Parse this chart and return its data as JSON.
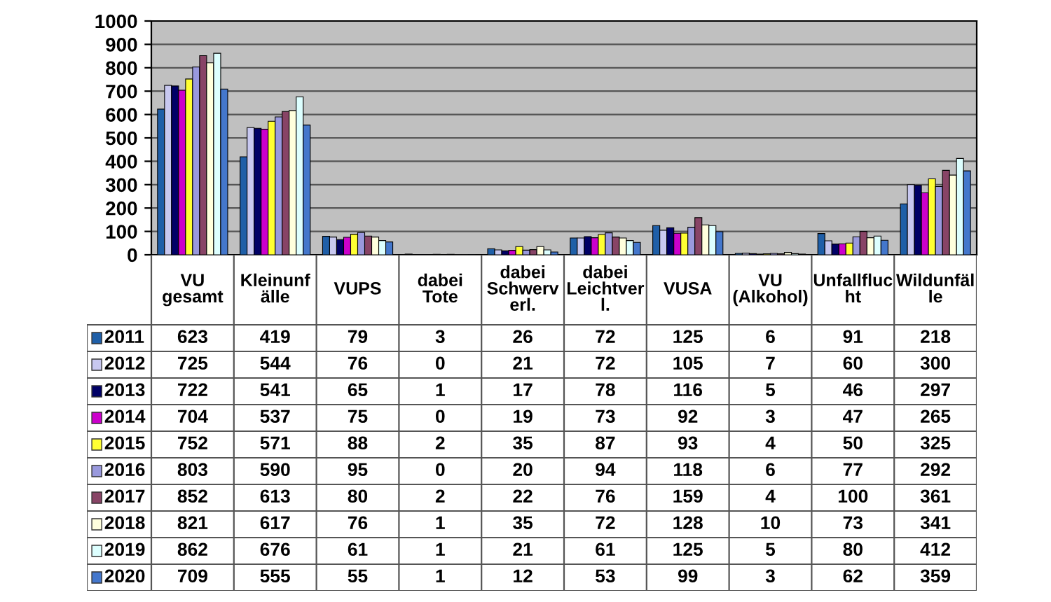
{
  "chart_data": {
    "type": "bar",
    "categories": [
      "VU\ngesamt",
      "Kleinunf\nälle",
      "VUPS",
      "dabei\nTote",
      "dabei\nSchwerv\nerl.",
      "dabei\nLeichtver\nl.",
      "VUSA",
      "VU\n(Alkohol)",
      "Unfallfluc\nht",
      "Wildunfäl\nle"
    ],
    "series": [
      {
        "name": "2011",
        "color": "#1f5fa8",
        "values": [
          623,
          419,
          79,
          3,
          26,
          72,
          125,
          6,
          91,
          218
        ]
      },
      {
        "name": "2012",
        "color": "#c8c8f0",
        "values": [
          725,
          544,
          76,
          0,
          21,
          72,
          105,
          7,
          60,
          300
        ]
      },
      {
        "name": "2013",
        "color": "#000066",
        "values": [
          722,
          541,
          65,
          1,
          17,
          78,
          116,
          5,
          46,
          297
        ]
      },
      {
        "name": "2014",
        "color": "#cc00cc",
        "values": [
          704,
          537,
          75,
          0,
          19,
          73,
          92,
          3,
          47,
          265
        ]
      },
      {
        "name": "2015",
        "color": "#ffff33",
        "values": [
          752,
          571,
          88,
          2,
          35,
          87,
          93,
          4,
          50,
          325
        ]
      },
      {
        "name": "2016",
        "color": "#9999dd",
        "values": [
          803,
          590,
          95,
          0,
          20,
          94,
          118,
          6,
          77,
          292
        ]
      },
      {
        "name": "2017",
        "color": "#884466",
        "values": [
          852,
          613,
          80,
          2,
          22,
          76,
          159,
          4,
          100,
          361
        ]
      },
      {
        "name": "2018",
        "color": "#ffffdd",
        "values": [
          821,
          617,
          76,
          1,
          35,
          72,
          128,
          10,
          73,
          341
        ]
      },
      {
        "name": "2019",
        "color": "#ddffff",
        "values": [
          862,
          676,
          61,
          1,
          21,
          61,
          125,
          5,
          80,
          412
        ]
      },
      {
        "name": "2020",
        "color": "#4477cc",
        "values": [
          709,
          555,
          55,
          1,
          12,
          53,
          99,
          3,
          62,
          359
        ]
      }
    ],
    "ylim": [
      0,
      1000
    ],
    "yticks": [
      0,
      100,
      200,
      300,
      400,
      500,
      600,
      700,
      800,
      900,
      1000
    ],
    "grid": "y",
    "legend": "bottom",
    "data_labels": true
  }
}
